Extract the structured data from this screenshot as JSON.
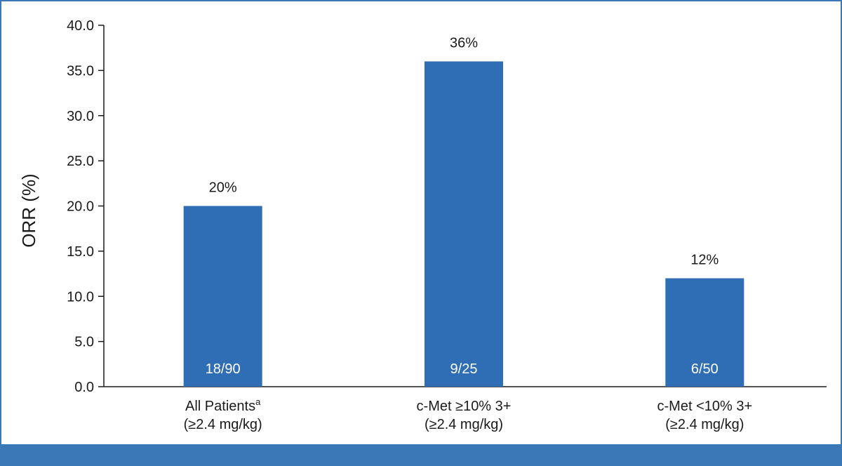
{
  "chart_data": {
    "type": "bar",
    "title": "",
    "ylabel": "ORR (%)",
    "xlabel": "",
    "ylim": [
      0,
      40
    ],
    "yticks": [
      "0.0",
      "5.0",
      "10.0",
      "15.0",
      "20.0",
      "25.0",
      "30.0",
      "35.0",
      "40.0"
    ],
    "categories": [
      {
        "line1": "All Patients",
        "superscript": "a",
        "line2": "(≥2.4 mg/kg)"
      },
      {
        "line1": "c-Met ≥10% 3+",
        "superscript": "",
        "line2": "(≥2.4 mg/kg)"
      },
      {
        "line1": "c-Met <10% 3+",
        "superscript": "",
        "line2": "(≥2.4 mg/kg)"
      }
    ],
    "values": [
      20,
      36,
      12
    ],
    "value_labels": [
      "20%",
      "36%",
      "12%"
    ],
    "ratio_labels": [
      "18/90",
      "9/25",
      "6/50"
    ],
    "bar_color": "#2f6db5",
    "frame_color": "#3a78b8",
    "grid": false
  }
}
